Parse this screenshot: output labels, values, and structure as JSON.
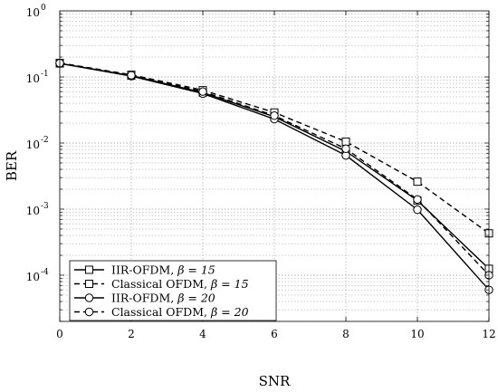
{
  "chart_data": {
    "type": "line",
    "xlabel": "SNR",
    "ylabel": "BER",
    "xlim": [
      0,
      12
    ],
    "ylim": [
      2e-05,
      1
    ],
    "yscale": "log",
    "grid": true,
    "legend_position": "bottom-left",
    "x": [
      0,
      2,
      4,
      6,
      8,
      10,
      12
    ],
    "x_ticks": [
      "0",
      "2",
      "4",
      "6",
      "8",
      "10",
      "12"
    ],
    "y_ticks": [
      {
        "base": "10",
        "exp": "0",
        "value": 1
      },
      {
        "base": "10",
        "exp": "-1",
        "value": 0.1
      },
      {
        "base": "10",
        "exp": "-2",
        "value": 0.01
      },
      {
        "base": "10",
        "exp": "-3",
        "value": 0.001
      },
      {
        "base": "10",
        "exp": "-4",
        "value": 0.0001
      }
    ],
    "series": [
      {
        "name": "IIR-OFDM, ",
        "beta": "β = 15",
        "marker": "square",
        "dash": "solid",
        "values": [
          0.16,
          0.105,
          0.058,
          0.025,
          0.0075,
          0.00135,
          0.000125
        ]
      },
      {
        "name": "Classical OFDM, ",
        "beta": "β = 15",
        "marker": "square",
        "dash": "dashed",
        "values": [
          0.163,
          0.108,
          0.063,
          0.029,
          0.0105,
          0.0026,
          0.00043
        ]
      },
      {
        "name": "IIR-OFDM, ",
        "beta": "β = 20",
        "marker": "circle",
        "dash": "solid",
        "values": [
          0.16,
          0.103,
          0.056,
          0.023,
          0.0065,
          0.00098,
          6e-05
        ]
      },
      {
        "name": "Classical OFDM, ",
        "beta": "β = 20",
        "marker": "circle",
        "dash": "dashed",
        "values": [
          0.162,
          0.106,
          0.06,
          0.026,
          0.0082,
          0.0014,
          0.0001
        ]
      }
    ]
  }
}
